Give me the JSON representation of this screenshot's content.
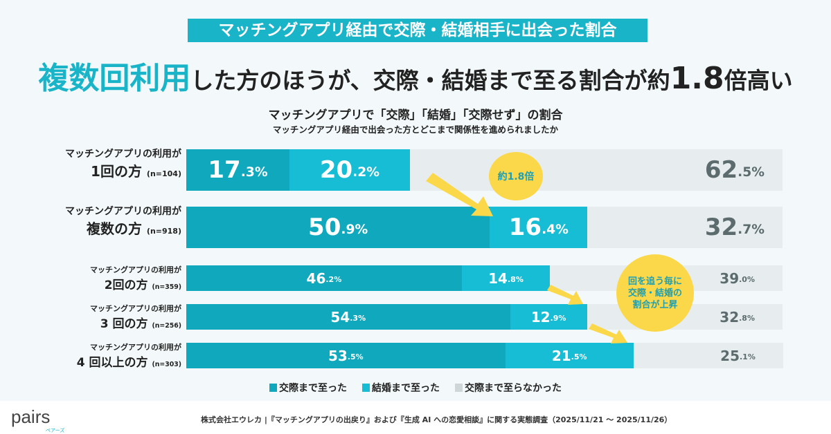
{
  "banner": "マッチングアプリ経由で交際・結婚相手に出会った割合",
  "headline": {
    "highlight": "複数回利用",
    "rest1": "した方のほうが、交際・結婚まで至る割合が約",
    "number": "1.8",
    "rest2": "倍高い"
  },
  "chart_data": {
    "type": "bar",
    "stacked": true,
    "orientation": "horizontal",
    "title": "マッチングアプリで「交際」「結婚」「交際せず」の割合",
    "subtitle": "マッチングアプリ経由で出会った方とどこまで関係性を進められましたか",
    "categories": [
      {
        "prefix": "マッチングアプリの利用が",
        "main": "1回の方",
        "n": "(n=104)"
      },
      {
        "prefix": "マッチングアプリの利用が",
        "main": "複数の方",
        "n": "(n=918)"
      },
      {
        "prefix": "マッチングアプリの利用が",
        "main": "2回の方",
        "n": "(n=359)"
      },
      {
        "prefix": "マッチングアプリの利用が",
        "main": "3 回の方",
        "n": "(n=256)"
      },
      {
        "prefix": "マッチングアプリの利用が",
        "main": "4 回以上の方",
        "n": "(n=303)"
      }
    ],
    "series": [
      {
        "name": "交際まで至った",
        "color": "#0fa8bd",
        "values": [
          17.3,
          50.9,
          46.2,
          54.3,
          53.5
        ]
      },
      {
        "name": "結婚まで至った",
        "color": "#16bdd5",
        "values": [
          20.2,
          16.4,
          14.8,
          12.9,
          21.5
        ]
      },
      {
        "name": "交際まで至らなかった",
        "color": "#e7edef",
        "values": [
          62.5,
          32.7,
          39.0,
          32.8,
          25.1
        ]
      }
    ],
    "xlim": [
      0,
      100
    ],
    "unit": "%",
    "annotations": [
      "約1.8倍",
      "回を追う毎に交際・結婚の割合が上昇"
    ],
    "legend_position": "bottom"
  },
  "footer": {
    "logo": "pairs",
    "logo_sub": "ペアーズ",
    "source": "株式会社エウレカ |『マッチングアプリの出戻り』および『生成 AI への恋愛相談』に関する実態調査（2025/11/21 ～ 2025/11/26）"
  }
}
